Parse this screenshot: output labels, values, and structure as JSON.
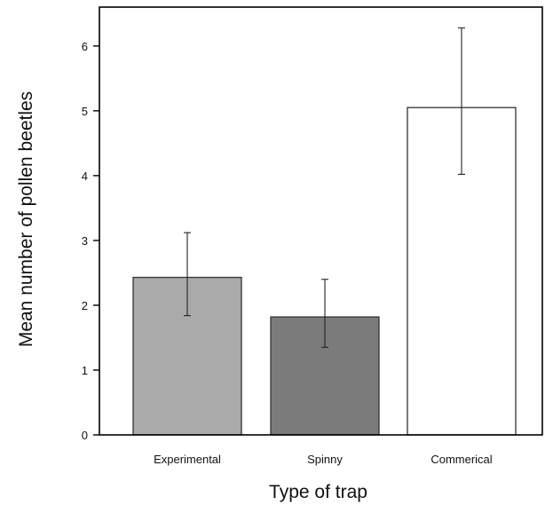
{
  "chart_data": {
    "type": "bar",
    "title": "",
    "xlabel": "Type of trap",
    "ylabel": "Mean number of pollen beetles",
    "categories": [
      "Experimental",
      "Spinny",
      "Commerical"
    ],
    "values": [
      2.43,
      1.82,
      5.05
    ],
    "error_upper": [
      3.12,
      2.4,
      6.28
    ],
    "error_lower": [
      1.84,
      1.35,
      4.02
    ],
    "bar_colors": [
      "#aaaaaa",
      "#7b7b7b",
      "#ffffff"
    ],
    "ylim": [
      0,
      6.6
    ],
    "yticks": [
      0,
      1,
      2,
      3,
      4,
      5,
      6
    ],
    "ytick_labels": [
      "0",
      "1",
      "2",
      "3",
      "4",
      "5",
      "6"
    ],
    "grid": false,
    "legend": "none"
  }
}
